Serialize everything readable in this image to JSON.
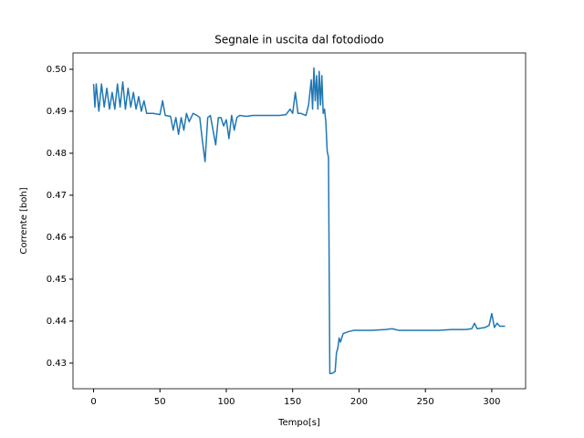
{
  "chart_data": {
    "type": "line",
    "title": "Segnale in uscita dal fotodiodo",
    "xlabel": "Tempo[s]",
    "ylabel": "Corrente [boh]",
    "x": [
      0,
      1,
      2,
      4,
      6,
      8,
      10,
      12,
      14,
      16,
      18,
      20,
      22,
      24,
      26,
      28,
      30,
      32,
      34,
      36,
      38,
      40,
      45,
      50,
      52,
      54,
      58,
      60,
      62,
      64,
      66,
      68,
      70,
      72,
      75,
      78,
      80,
      82,
      84,
      86,
      88,
      90,
      92,
      94,
      96,
      98,
      100,
      102,
      104,
      106,
      108,
      110,
      115,
      120,
      130,
      140,
      145,
      148,
      150,
      152,
      154,
      156,
      160,
      162,
      164,
      165,
      166,
      167,
      168,
      169,
      170,
      171,
      172,
      173,
      174,
      175,
      176,
      177,
      178,
      180,
      182,
      183,
      184,
      185,
      186,
      188,
      192,
      196,
      200,
      210,
      220,
      225,
      230,
      240,
      250,
      260,
      270,
      280,
      285,
      287,
      289,
      295,
      298,
      300,
      302,
      304,
      306,
      310
    ],
    "series": [
      {
        "color": "#1f77b4",
        "values": [
          0.4965,
          0.491,
          0.4965,
          0.49,
          0.4965,
          0.491,
          0.4955,
          0.4905,
          0.4945,
          0.4905,
          0.4965,
          0.491,
          0.497,
          0.4905,
          0.4955,
          0.491,
          0.4945,
          0.4905,
          0.4935,
          0.49,
          0.4925,
          0.4895,
          0.4895,
          0.4892,
          0.4925,
          0.489,
          0.4888,
          0.4855,
          0.4885,
          0.4845,
          0.4885,
          0.4855,
          0.4895,
          0.4875,
          0.4895,
          0.489,
          0.4885,
          0.483,
          0.478,
          0.4885,
          0.489,
          0.4855,
          0.482,
          0.4885,
          0.4885,
          0.4865,
          0.488,
          0.4835,
          0.489,
          0.4855,
          0.4885,
          0.489,
          0.4888,
          0.489,
          0.489,
          0.489,
          0.4892,
          0.4905,
          0.4895,
          0.4945,
          0.4895,
          0.4895,
          0.489,
          0.4915,
          0.4975,
          0.4905,
          0.5003,
          0.4925,
          0.4985,
          0.4905,
          0.4995,
          0.4915,
          0.4985,
          0.4895,
          0.4905,
          0.4875,
          0.4805,
          0.479,
          0.4275,
          0.4276,
          0.428,
          0.4325,
          0.4335,
          0.436,
          0.435,
          0.437,
          0.4375,
          0.4378,
          0.4378,
          0.4378,
          0.438,
          0.4382,
          0.4378,
          0.4378,
          0.4378,
          0.4378,
          0.438,
          0.438,
          0.4382,
          0.4395,
          0.4382,
          0.4385,
          0.439,
          0.4418,
          0.4385,
          0.4395,
          0.4388,
          0.4388
        ]
      }
    ],
    "xlim": [
      -15.5,
      325.5
    ],
    "ylim": [
      0.4239,
      0.5039
    ],
    "xticks": [
      0,
      50,
      100,
      150,
      200,
      250,
      300
    ],
    "yticks": [
      0.43,
      0.44,
      0.45,
      0.46,
      0.47,
      0.48,
      0.49,
      {
        "value": 0.5,
        "label": "0.50"
      }
    ]
  }
}
